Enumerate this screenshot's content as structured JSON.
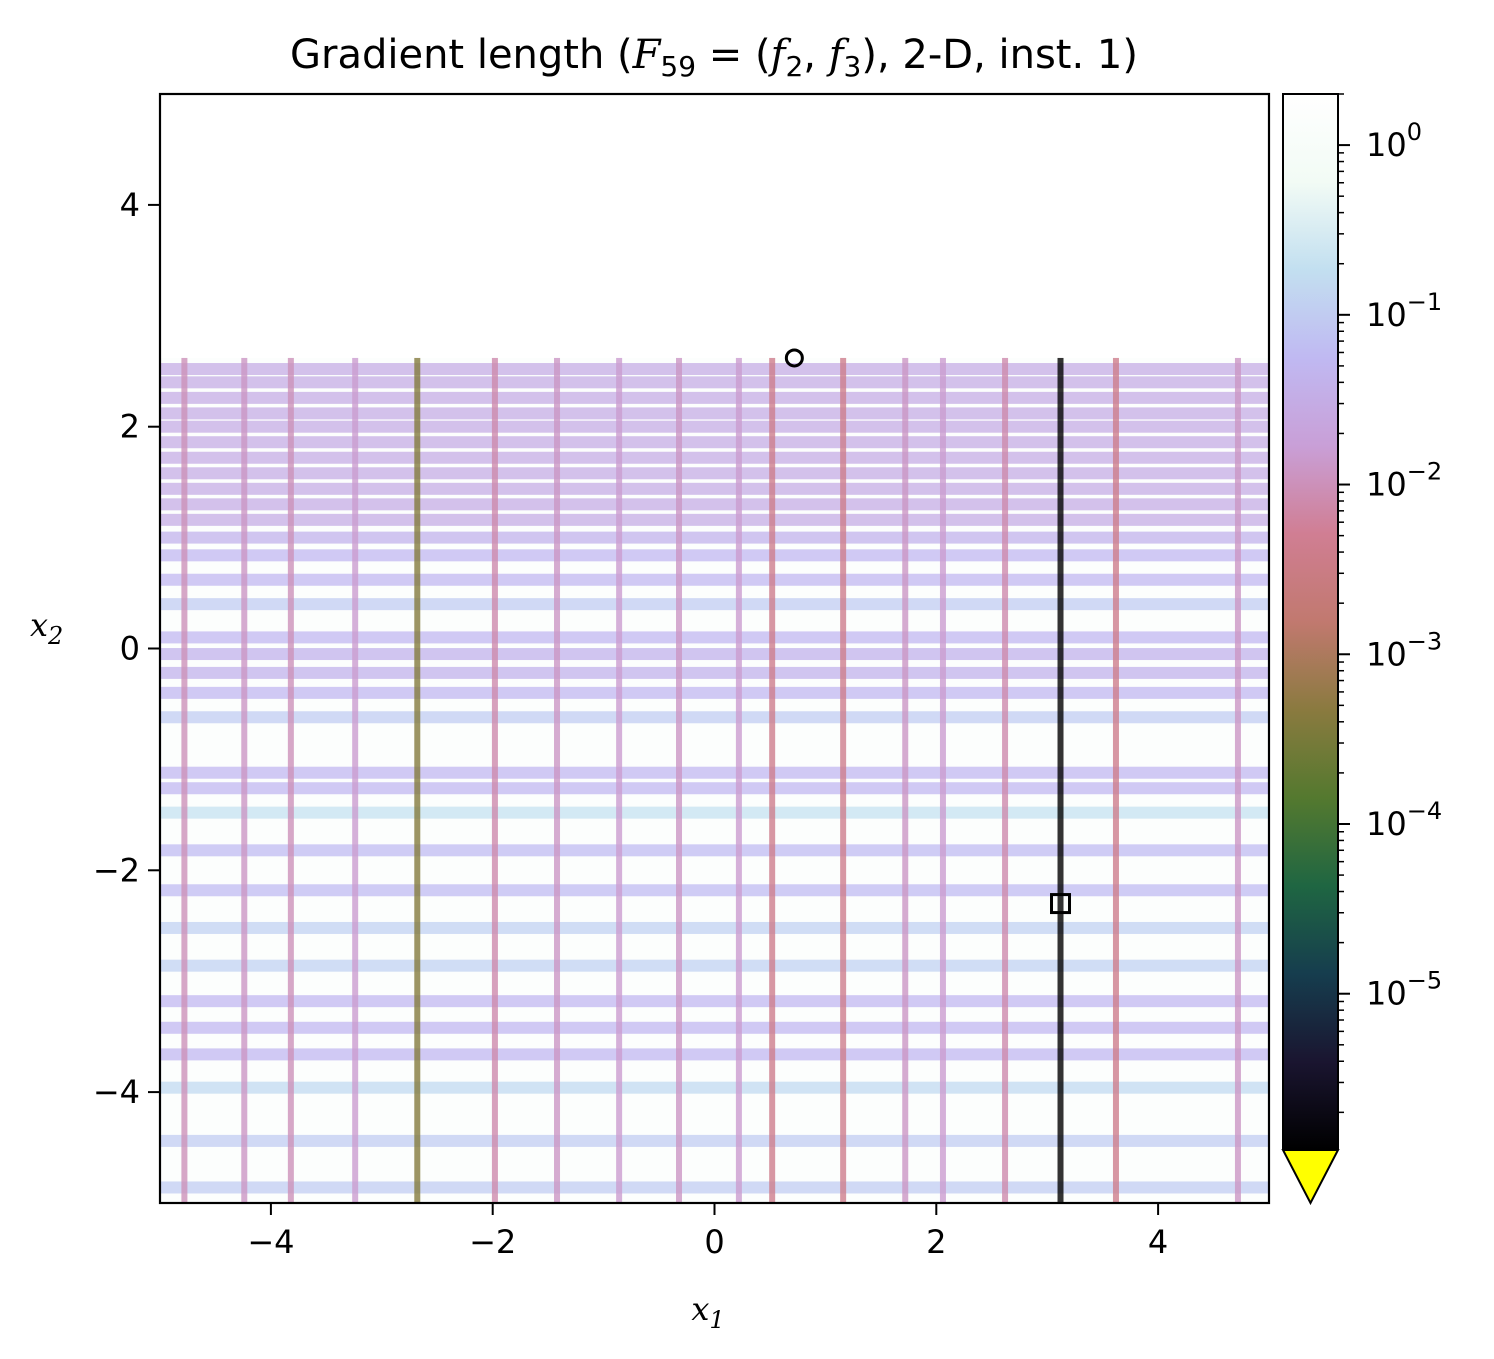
{
  "chart_data": {
    "type": "heatmap",
    "title": "Gradient length (",
    "title_math": "F",
    "title_math_sub": "59",
    "title_eq": " = (",
    "title_f2": "f",
    "title_f2_sub": "2",
    "title_comma": ", ",
    "title_f3": "f",
    "title_f3_sub": "3",
    "title_tail": "), 2-D, inst. 1)",
    "xlabel": "x",
    "xlabel_sub": "1",
    "ylabel": "x",
    "ylabel_sub": "2",
    "xlim": [
      -5,
      5
    ],
    "ylim": [
      -5,
      5
    ],
    "x_ticks": [
      {
        "value": -4,
        "label": "−4"
      },
      {
        "value": -2,
        "label": "−2"
      },
      {
        "value": 0,
        "label": "0"
      },
      {
        "value": 2,
        "label": "2"
      },
      {
        "value": 4,
        "label": "4"
      }
    ],
    "y_ticks": [
      {
        "value": 4,
        "label": "4"
      },
      {
        "value": 2,
        "label": "2"
      },
      {
        "value": 0,
        "label": "0"
      },
      {
        "value": -2,
        "label": "−2"
      },
      {
        "value": -4,
        "label": "−4"
      }
    ],
    "colorbar": {
      "scale": "log",
      "min": 1.2e-06,
      "max": 2.0,
      "extend": "min",
      "under_color": "#ffff00",
      "ticks": [
        {
          "value": 1,
          "base": "10",
          "exp": "0"
        },
        {
          "value": 0.1,
          "base": "10",
          "exp": "−1"
        },
        {
          "value": 0.01,
          "base": "10",
          "exp": "−2"
        },
        {
          "value": 0.001,
          "base": "10",
          "exp": "−3"
        },
        {
          "value": 0.0001,
          "base": "10",
          "exp": "−4"
        },
        {
          "value": 1e-05,
          "base": "10",
          "exp": "−5"
        }
      ],
      "colormap": [
        "#000000",
        "#1a1530",
        "#163d4e",
        "#1f6642",
        "#54792f",
        "#8a7a3f",
        "#c1796f",
        "#d07e93",
        "#c99fd7",
        "#c0b9f2",
        "#c2dff0",
        "#f2fbf5",
        "#ffffff"
      ]
    },
    "field_top_y": 2.62,
    "x_lines": [
      {
        "x": -4.78,
        "level": 0.01
      },
      {
        "x": -4.24,
        "level": 0.012
      },
      {
        "x": -3.82,
        "level": 0.01
      },
      {
        "x": -3.24,
        "level": 0.015
      },
      {
        "x": -2.68,
        "level": 0.0004
      },
      {
        "x": -1.98,
        "level": 0.008
      },
      {
        "x": -1.42,
        "level": 0.012
      },
      {
        "x": -0.86,
        "level": 0.015
      },
      {
        "x": -0.32,
        "level": 0.012
      },
      {
        "x": 0.22,
        "level": 0.015
      },
      {
        "x": 0.52,
        "level": 0.004
      },
      {
        "x": 1.16,
        "level": 0.004
      },
      {
        "x": 1.72,
        "level": 0.012
      },
      {
        "x": 2.06,
        "level": 0.015
      },
      {
        "x": 2.62,
        "level": 0.008
      },
      {
        "x": 3.12,
        "level": 1e-06
      },
      {
        "x": 3.62,
        "level": 0.004
      },
      {
        "x": 4.72,
        "level": 0.012
      }
    ],
    "y_bands": [
      {
        "y": -4.86,
        "level": 0.1
      },
      {
        "y": -4.44,
        "level": 0.1
      },
      {
        "y": -3.96,
        "level": 0.15
      },
      {
        "y": -3.66,
        "level": 0.05
      },
      {
        "y": -3.42,
        "level": 0.05
      },
      {
        "y": -3.18,
        "level": 0.05
      },
      {
        "y": -2.86,
        "level": 0.12
      },
      {
        "y": -2.52,
        "level": 0.12
      },
      {
        "y": -2.18,
        "level": 0.06
      },
      {
        "y": -1.82,
        "level": 0.06
      },
      {
        "y": -1.48,
        "level": 0.2
      },
      {
        "y": -1.26,
        "level": 0.05
      },
      {
        "y": -1.12,
        "level": 0.05
      },
      {
        "y": -0.62,
        "level": 0.1
      },
      {
        "y": -0.4,
        "level": 0.05
      },
      {
        "y": -0.22,
        "level": 0.04
      },
      {
        "y": -0.05,
        "level": 0.04
      },
      {
        "y": 0.1,
        "level": 0.05
      },
      {
        "y": 0.4,
        "level": 0.1
      },
      {
        "y": 0.62,
        "level": 0.05
      },
      {
        "y": 0.84,
        "level": 0.05
      },
      {
        "y": 1.0,
        "level": 0.04
      },
      {
        "y": 1.16,
        "level": 0.03
      },
      {
        "y": 1.3,
        "level": 0.03
      },
      {
        "y": 1.44,
        "level": 0.03
      },
      {
        "y": 1.58,
        "level": 0.03
      },
      {
        "y": 1.72,
        "level": 0.03
      },
      {
        "y": 1.86,
        "level": 0.03
      },
      {
        "y": 2.0,
        "level": 0.03
      },
      {
        "y": 2.12,
        "level": 0.03
      },
      {
        "y": 2.26,
        "level": 0.03
      },
      {
        "y": 2.4,
        "level": 0.03
      },
      {
        "y": 2.52,
        "level": 0.03
      }
    ],
    "markers": [
      {
        "shape": "circle",
        "x": 0.72,
        "y": 2.62
      },
      {
        "shape": "square",
        "x": 3.12,
        "y": -2.3
      }
    ]
  }
}
